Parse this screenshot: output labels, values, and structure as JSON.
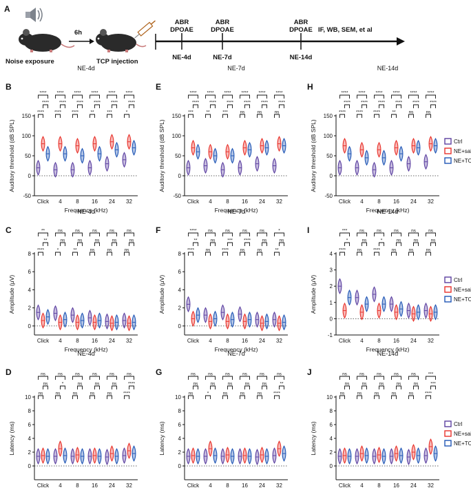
{
  "timeline": {
    "panel_letter": "A",
    "noise_label": "Noise exposure",
    "delay_label": "6h",
    "tcp_label": "TCP injection",
    "test_label_1": "ABR",
    "test_label_2": "DPOAE",
    "timepoints": [
      "NE-4d",
      "NE-7d",
      "NE-14d"
    ],
    "end_label": "IF, WB, SEM, et al"
  },
  "legend": {
    "groups": [
      "Ctrl",
      "NE+saline",
      "NE+TCP"
    ],
    "colors": [
      "#5b3fa0",
      "#e8312a",
      "#1f55b5"
    ]
  },
  "chart_data": [
    {
      "panel": "B",
      "type": "violin",
      "title": "NE-4d",
      "ylabel": "Auditory threshold (dB SPL)",
      "xlabel": "Frequency (kHz)",
      "categories": [
        "Click",
        "4",
        "8",
        "16",
        "24",
        "32"
      ],
      "ylim": [
        -50,
        150
      ],
      "yticks": [
        -50,
        0,
        50,
        100,
        150
      ],
      "series": [
        {
          "name": "Ctrl",
          "values": [
            20,
            15,
            15,
            20,
            30,
            40
          ]
        },
        {
          "name": "NE+saline",
          "values": [
            80,
            80,
            75,
            80,
            85,
            85
          ]
        },
        {
          "name": "NE+TCP",
          "values": [
            55,
            55,
            50,
            55,
            65,
            70
          ]
        }
      ],
      "significance": [
        [
          "****",
          "****",
          "****"
        ],
        [
          "****",
          "****",
          "****"
        ],
        [
          "****",
          "****",
          "****"
        ],
        [
          "****",
          "****",
          "**"
        ],
        [
          "****",
          "****",
          "***"
        ],
        [
          "****",
          "****",
          "*"
        ]
      ]
    },
    {
      "panel": "E",
      "type": "violin",
      "title": "NE-7d",
      "ylabel": "Auditory threshold (dB SPL)",
      "xlabel": "Frequency (kHz)",
      "categories": [
        "Click",
        "4",
        "8",
        "16",
        "24",
        "32"
      ],
      "ylim": [
        -50,
        150
      ],
      "yticks": [
        -50,
        0,
        50,
        100,
        150
      ],
      "series": [
        {
          "name": "Ctrl",
          "values": [
            20,
            25,
            15,
            20,
            30,
            25
          ]
        },
        {
          "name": "NE+saline",
          "values": [
            70,
            60,
            60,
            70,
            75,
            80
          ]
        },
        {
          "name": "NE+TCP",
          "values": [
            60,
            50,
            50,
            65,
            70,
            75
          ]
        }
      ],
      "significance": [
        [
          "****",
          "****",
          "***"
        ],
        [
          "****",
          "****",
          "**"
        ],
        [
          "****",
          "****",
          "***"
        ],
        [
          "****",
          "****",
          "ns"
        ],
        [
          "****",
          "****",
          "ns"
        ],
        [
          "****",
          "****",
          "ns"
        ]
      ]
    },
    {
      "panel": "H",
      "type": "violin",
      "title": "NE-14d",
      "ylabel": "Auditory threshold (dB SPL)",
      "xlabel": "Frequency (kHz)",
      "categories": [
        "Click",
        "4",
        "8",
        "16",
        "24",
        "32"
      ],
      "ylim": [
        -50,
        150
      ],
      "yticks": [
        -50,
        0,
        50,
        100,
        150
      ],
      "series": [
        {
          "name": "Ctrl",
          "values": [
            20,
            20,
            15,
            20,
            30,
            35
          ]
        },
        {
          "name": "NE+saline",
          "values": [
            75,
            65,
            65,
            70,
            75,
            80
          ]
        },
        {
          "name": "NE+TCP",
          "values": [
            55,
            45,
            45,
            55,
            70,
            75
          ]
        }
      ],
      "significance": [
        [
          "****",
          "****",
          "****"
        ],
        [
          "****",
          "****",
          "****"
        ],
        [
          "****",
          "****",
          "****"
        ],
        [
          "****",
          "****",
          "**"
        ],
        [
          "****",
          "****",
          "ns"
        ],
        [
          "****",
          "****",
          "ns"
        ]
      ]
    },
    {
      "panel": "C",
      "type": "violin",
      "title": "NE-4d",
      "ylabel": "Amplitude (μV)",
      "xlabel": "Frequency (kHz)",
      "categories": [
        "Click",
        "4",
        "8",
        "16",
        "24",
        "32"
      ],
      "ylim": [
        -1,
        8
      ],
      "yticks": [
        0,
        2,
        4,
        6,
        8
      ],
      "series": [
        {
          "name": "Ctrl",
          "values": [
            1.5,
            1.4,
            1.2,
            0.9,
            0.5,
            0.6
          ]
        },
        {
          "name": "NE+saline",
          "values": [
            0.6,
            0.4,
            0.4,
            0.4,
            0.3,
            0.3
          ]
        },
        {
          "name": "NE+TCP",
          "values": [
            1.0,
            0.7,
            0.6,
            0.6,
            0.4,
            0.4
          ]
        }
      ],
      "significance": [
        [
          "**",
          "**",
          "****"
        ],
        [
          "ns",
          "ns",
          "*"
        ],
        [
          "ns",
          "ns",
          "**"
        ],
        [
          "ns",
          "ns",
          "ns"
        ],
        [
          "ns",
          "ns",
          "ns"
        ],
        [
          "ns",
          "ns",
          "ns"
        ]
      ]
    },
    {
      "panel": "F",
      "type": "violin",
      "title": "NE-7d",
      "ylabel": "Amplitude (μV)",
      "xlabel": "Frequency (kHz)",
      "categories": [
        "Click",
        "4",
        "8",
        "16",
        "24",
        "32"
      ],
      "ylim": [
        -1,
        8
      ],
      "yticks": [
        0,
        2,
        4,
        6,
        8
      ],
      "series": [
        {
          "name": "Ctrl",
          "values": [
            2.4,
            1.2,
            1.5,
            1.3,
            0.7,
            0.7
          ]
        },
        {
          "name": "NE+saline",
          "values": [
            0.8,
            0.5,
            0.5,
            0.5,
            0.3,
            0.3
          ]
        },
        {
          "name": "NE+TCP",
          "values": [
            1.2,
            0.8,
            0.7,
            0.7,
            0.5,
            0.4
          ]
        }
      ],
      "significance": [
        [
          "****",
          "**",
          "****"
        ],
        [
          "ns",
          "ns",
          "ns"
        ],
        [
          "ns",
          "***",
          "****"
        ],
        [
          "ns",
          "****",
          "ns"
        ],
        [
          "ns",
          "ns",
          "ns"
        ],
        [
          "*",
          "ns",
          "**"
        ]
      ]
    },
    {
      "panel": "I",
      "type": "violin",
      "title": "NE-14d",
      "ylabel": "Amplitude (μV)",
      "xlabel": "Frequency (kHz)",
      "categories": [
        "Click",
        "4",
        "8",
        "16",
        "24",
        "32"
      ],
      "ylim": [
        -1,
        4
      ],
      "yticks": [
        -1,
        0,
        1,
        2,
        3,
        4
      ],
      "series": [
        {
          "name": "Ctrl",
          "values": [
            2.0,
            1.3,
            1.5,
            0.9,
            0.5,
            0.5
          ]
        },
        {
          "name": "NE+saline",
          "values": [
            0.5,
            0.4,
            0.5,
            0.4,
            0.3,
            0.3
          ]
        },
        {
          "name": "NE+TCP",
          "values": [
            1.3,
            0.9,
            0.9,
            0.6,
            0.4,
            0.4
          ]
        }
      ],
      "significance": [
        [
          "***",
          "*",
          "****"
        ],
        [
          "ns",
          "ns",
          "ns"
        ],
        [
          "ns",
          "*",
          "****"
        ],
        [
          "ns",
          "ns",
          "ns"
        ],
        [
          "ns",
          "ns",
          "ns"
        ],
        [
          "ns",
          "ns",
          "ns"
        ]
      ]
    },
    {
      "panel": "D",
      "type": "violin",
      "title": "NE-4d",
      "ylabel": "Latency (ms)",
      "xlabel": "Frequency (kHz)",
      "categories": [
        "Click",
        "4",
        "8",
        "16",
        "24",
        "32"
      ],
      "ylim": [
        -2,
        10
      ],
      "yticks": [
        0,
        2,
        4,
        6,
        8,
        10
      ],
      "series": [
        {
          "name": "Ctrl",
          "values": [
            1.4,
            1.4,
            1.4,
            1.4,
            1.3,
            1.5
          ]
        },
        {
          "name": "NE+saline",
          "values": [
            1.5,
            2.5,
            1.6,
            1.5,
            1.8,
            2.2
          ]
        },
        {
          "name": "NE+TCP",
          "values": [
            1.4,
            1.5,
            1.4,
            1.4,
            1.4,
            1.8
          ]
        }
      ],
      "significance": [
        [
          "ns",
          "ns",
          "ns"
        ],
        [
          "ns",
          "*",
          "ns"
        ],
        [
          "ns",
          "ns",
          "ns"
        ],
        [
          "ns",
          "ns",
          "ns"
        ],
        [
          "ns",
          "ns",
          "ns"
        ],
        [
          "ns",
          "****",
          "****"
        ]
      ]
    },
    {
      "panel": "G",
      "type": "violin",
      "title": "NE-7d",
      "ylabel": "Latency (ms)",
      "xlabel": "Frequency (kHz)",
      "categories": [
        "Click",
        "4",
        "8",
        "16",
        "24",
        "32"
      ],
      "ylim": [
        -2,
        10
      ],
      "yticks": [
        0,
        2,
        4,
        6,
        8,
        10
      ],
      "series": [
        {
          "name": "Ctrl",
          "values": [
            1.4,
            1.4,
            1.4,
            1.4,
            1.3,
            1.5
          ]
        },
        {
          "name": "NE+saline",
          "values": [
            1.5,
            2.5,
            1.6,
            1.5,
            1.6,
            2.5
          ]
        },
        {
          "name": "NE+TCP",
          "values": [
            1.4,
            1.5,
            1.4,
            1.4,
            1.4,
            1.8
          ]
        }
      ],
      "significance": [
        [
          "ns",
          "ns",
          "ns"
        ],
        [
          "ns",
          "ns",
          "*"
        ],
        [
          "ns",
          "ns",
          "ns"
        ],
        [
          "ns",
          "ns",
          "ns"
        ],
        [
          "ns",
          "ns",
          "ns"
        ],
        [
          "ns",
          "**",
          "****"
        ]
      ]
    },
    {
      "panel": "J",
      "type": "violin",
      "title": "NE-14d",
      "ylabel": "Latency (ms)",
      "xlabel": "Frequency (kHz)",
      "categories": [
        "Click",
        "4",
        "8",
        "16",
        "24",
        "32"
      ],
      "ylim": [
        -2,
        10
      ],
      "yticks": [
        0,
        2,
        4,
        6,
        8,
        10
      ],
      "series": [
        {
          "name": "Ctrl",
          "values": [
            1.4,
            1.4,
            1.4,
            1.4,
            1.3,
            1.5
          ]
        },
        {
          "name": "NE+saline",
          "values": [
            1.5,
            1.8,
            1.6,
            1.8,
            2.0,
            2.8
          ]
        },
        {
          "name": "NE+TCP",
          "values": [
            1.4,
            1.5,
            1.4,
            1.5,
            1.5,
            1.8
          ]
        }
      ],
      "significance": [
        [
          "ns",
          "ns",
          "ns"
        ],
        [
          "ns",
          "ns",
          "ns"
        ],
        [
          "ns",
          "ns",
          "ns"
        ],
        [
          "ns",
          "ns",
          "ns"
        ],
        [
          "ns",
          "ns",
          "ns"
        ],
        [
          "***",
          "***",
          "****"
        ]
      ]
    }
  ]
}
